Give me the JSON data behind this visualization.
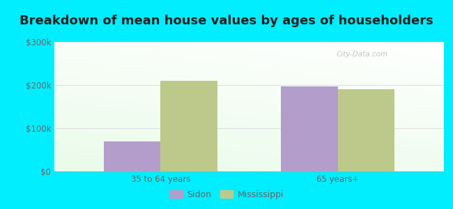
{
  "title": "Breakdown of mean house values by ages of householders",
  "categories": [
    "35 to 64 years",
    "65 years+"
  ],
  "sidon_values": [
    70000,
    197000
  ],
  "mississippi_values": [
    210000,
    190000
  ],
  "sidon_color": "#b39dca",
  "mississippi_color": "#bdc98a",
  "background_color": "#00eeff",
  "ylim": [
    0,
    300000
  ],
  "yticks": [
    0,
    100000,
    200000,
    300000
  ],
  "ytick_labels": [
    "$0",
    "$100k",
    "$200k",
    "$300k"
  ],
  "bar_width": 0.32,
  "legend_labels": [
    "Sidon",
    "Mississippi"
  ],
  "title_fontsize": 13,
  "tick_fontsize": 8.5,
  "legend_fontsize": 9,
  "grid_color": "#dddddd",
  "tick_color": "#666666"
}
